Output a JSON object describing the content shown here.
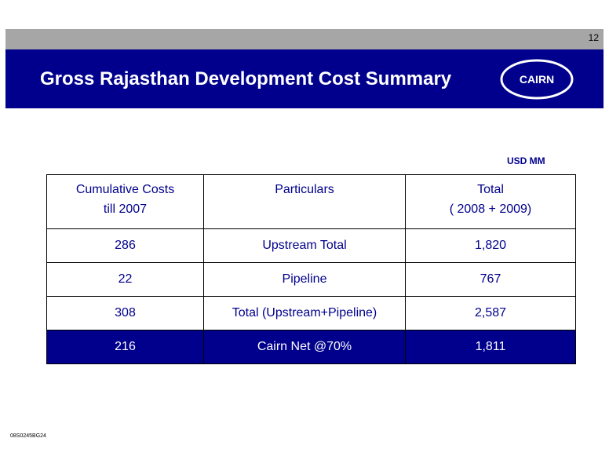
{
  "slide": {
    "page_number": "12",
    "title": "Gross Rajasthan Development Cost Summary",
    "logo_text": "CAIRN",
    "units": "USD MM",
    "footer_code": "08S0245BG24"
  },
  "colors": {
    "brand_blue": "#00008c",
    "header_gray": "#a6a6a6",
    "white": "#ffffff"
  },
  "table": {
    "headers": [
      [
        "Cumulative Costs",
        "till 2007"
      ],
      [
        "Particulars",
        ""
      ],
      [
        "Total",
        "( 2008 + 2009)"
      ]
    ],
    "rows": [
      [
        "286",
        "Upstream Total",
        "1,820"
      ],
      [
        "22",
        "Pipeline",
        "767"
      ],
      [
        "308",
        "Total (Upstream+Pipeline)",
        "2,587"
      ],
      [
        "216",
        "Cairn Net @70%",
        "1,811"
      ]
    ]
  }
}
